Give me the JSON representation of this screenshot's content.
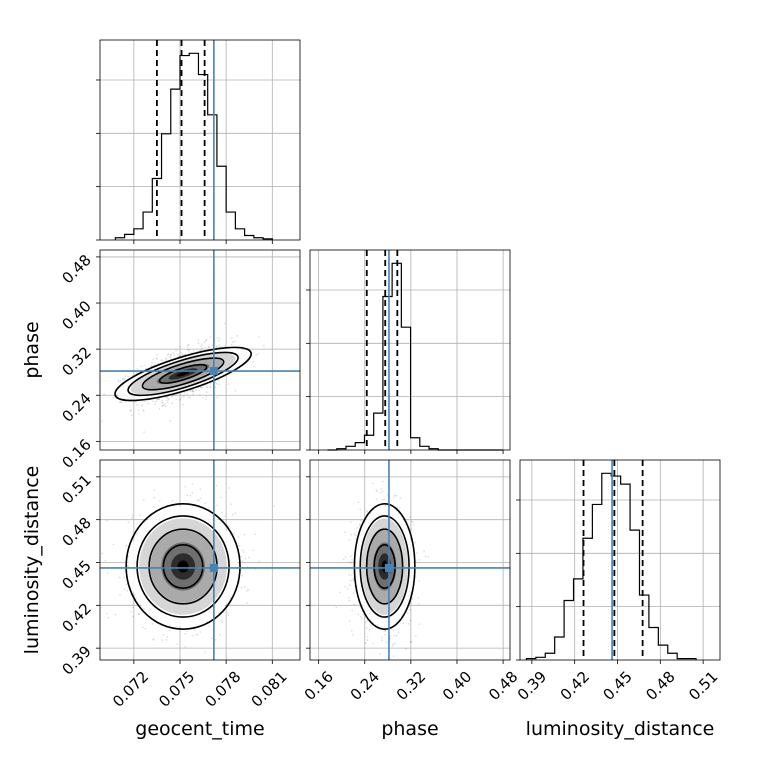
{
  "chart_data": {
    "type": "corner",
    "parameters": [
      "geocent_time",
      "phase",
      "luminosity_distance"
    ],
    "axis_labels": {
      "geocent_time": "geocent_time",
      "phase": "phase",
      "luminosity_distance": "luminosity_distance"
    },
    "ranges": {
      "geocent_time": [
        0.0698,
        0.0828
      ],
      "phase": [
        0.145,
        0.492
      ],
      "luminosity_distance": [
        0.3817,
        0.5218
      ]
    },
    "ticks": {
      "geocent_time": [
        "0.072",
        "0.075",
        "0.078",
        "0.081"
      ],
      "phase": [
        "0.16",
        "0.24",
        "0.32",
        "0.40",
        "0.48"
      ],
      "luminosity_distance": [
        "0.39",
        "0.42",
        "0.45",
        "0.48",
        "0.51"
      ]
    },
    "truths": {
      "geocent_time": 0.0772,
      "phase": 0.282,
      "luminosity_distance": 0.4462
    },
    "quantiles": {
      "geocent_time": [
        0.0735,
        0.0751,
        0.0766
      ],
      "phase": [
        0.2435,
        0.2755,
        0.2965
      ],
      "luminosity_distance": [
        0.4262,
        0.4478,
        0.4676
      ]
    },
    "histograms": {
      "geocent_time": {
        "start": 0.0708,
        "bin_width": 0.0006,
        "counts": [
          2,
          5,
          10,
          25,
          55,
          95,
          135,
          165,
          167,
          148,
          112,
          66,
          25,
          10,
          4,
          2,
          1
        ]
      },
      "phase": {
        "start": 0.1755,
        "bin_width": 0.016,
        "counts": [
          0,
          1,
          3,
          6,
          12,
          30,
          125,
          152,
          100,
          10,
          3,
          1,
          0,
          0,
          0,
          0,
          0,
          0,
          0
        ]
      },
      "luminosity_distance": {
        "start": 0.3862,
        "bin_width": 0.0066,
        "counts": [
          1,
          2,
          5,
          17,
          44,
          60,
          90,
          115,
          138,
          136,
          130,
          96,
          48,
          24,
          11,
          5,
          1,
          1
        ]
      }
    },
    "pair_means": {
      "phase_vs_geocent_time": {
        "x": 0.0752,
        "y": 0.277,
        "correlation": 0.55
      },
      "luminosity_distance_vs_geocent_time": {
        "x": 0.0752,
        "y": 0.4472,
        "correlation": 0.0
      },
      "luminosity_distance_vs_phase": {
        "x": 0.2745,
        "y": 0.4472,
        "correlation": 0.0
      }
    },
    "grid": true,
    "colors": {
      "truth": "#4682b4",
      "hist": "#000000",
      "quantile": "#000000"
    }
  }
}
